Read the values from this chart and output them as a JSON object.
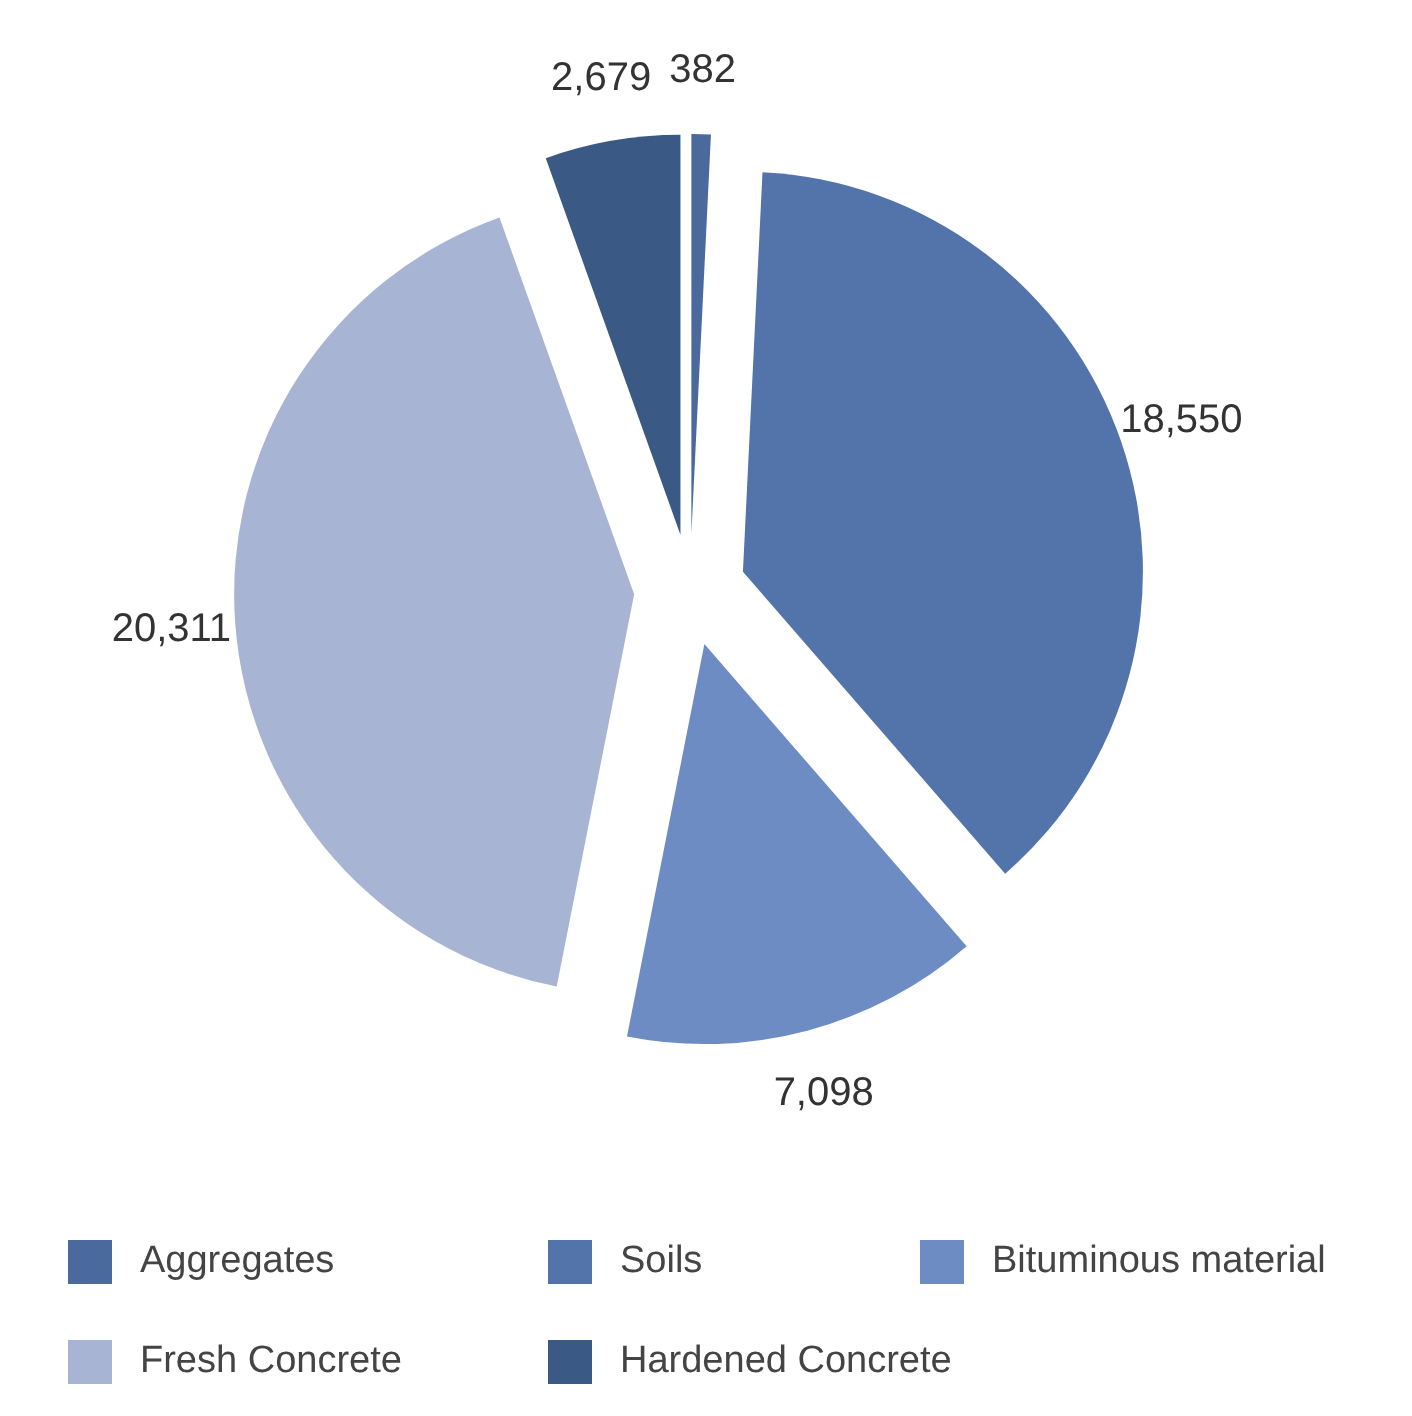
{
  "chart_data": {
    "type": "pie",
    "categories": [
      "Aggregates",
      "Soils",
      "Bituminous material",
      "Fresh Concrete",
      "Hardened Concrete"
    ],
    "values": [
      382,
      18550,
      7098,
      20311,
      2679
    ],
    "colors": [
      "#4a6a9e",
      "#5274aa",
      "#6d8cc4",
      "#a7b4d4",
      "#3a5a85"
    ],
    "data_labels": true,
    "value_labels": [
      "382",
      "18,550",
      "7,098",
      "20,311",
      "2,679"
    ],
    "legend": "bottom"
  }
}
